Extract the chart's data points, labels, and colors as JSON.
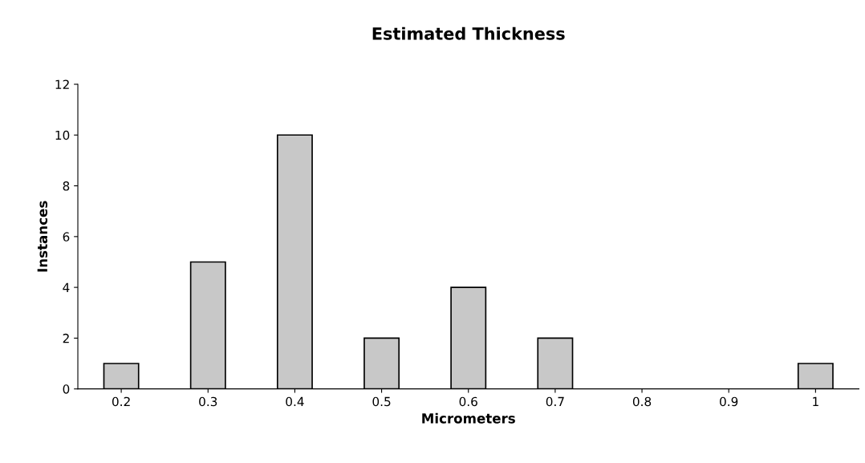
{
  "chart_data": {
    "type": "bar",
    "title": "Estimated Thickness",
    "xlabel": "Micrometers",
    "ylabel": "Instances",
    "categories": [
      "0.2",
      "0.3",
      "0.4",
      "0.5",
      "0.6",
      "0.7",
      "0.8",
      "0.9",
      "1"
    ],
    "values": [
      1,
      5,
      10,
      2,
      4,
      2,
      0,
      0,
      1
    ],
    "color": "#c8c8c8",
    "ylim": [
      0,
      12
    ],
    "yticks": [
      0,
      2,
      4,
      6,
      8,
      10,
      12
    ],
    "grid": false
  }
}
